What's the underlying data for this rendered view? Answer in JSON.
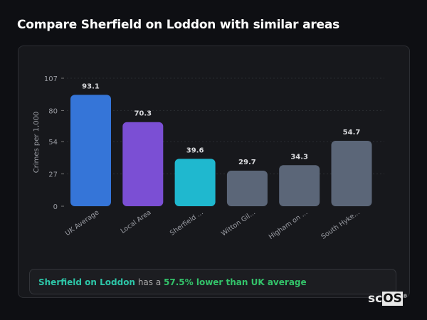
{
  "title": "Compare Sherfield on Loddon with similar areas",
  "chart_data": {
    "type": "bar",
    "categories": [
      "UK Average",
      "Local Area",
      "Sherfield ...",
      "Witton Gil...",
      "Higham on ...",
      "South Hyke..."
    ],
    "values": [
      93.1,
      70.3,
      39.6,
      29.7,
      34.3,
      54.7
    ],
    "colors": [
      "#3575d8",
      "#7b4fd4",
      "#1fb8cf",
      "#5b6678",
      "#5b6678",
      "#5b6678"
    ],
    "ylabel": "Crimes per 1,000",
    "yticks": [
      0,
      27,
      54,
      80,
      107
    ],
    "ylim": [
      0,
      107
    ],
    "grid": true
  },
  "summary": {
    "place": "Sherfield on Loddon",
    "mid": "has a",
    "diff": "57.5% lower than UK average"
  },
  "logo": "scOS"
}
